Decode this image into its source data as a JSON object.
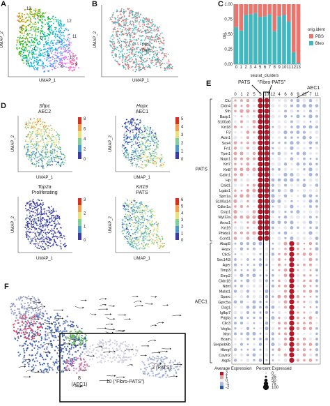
{
  "panel_labels": {
    "a": "A",
    "b": "B",
    "c": "C",
    "d": "D",
    "e": "E",
    "f": "F"
  },
  "umap_axes": {
    "x": "UMAP_1",
    "y": "UMAP_2"
  },
  "panel_a": {
    "cluster_labels": [
      "13",
      "12",
      "11",
      "0",
      "10",
      "1",
      "2",
      "3",
      "4",
      "5",
      "6",
      "7",
      "8",
      "9"
    ]
  },
  "panel_b": {
    "groups": [
      "PBS",
      "Bleo"
    ]
  },
  "panel_c": {
    "ylabel": "cnt",
    "xlabel": "seurat_clusters",
    "legend_title": "orig.ident",
    "colors": {
      "PBS": "#e8756e",
      "Bleo": "#3fb8c0"
    },
    "ticks_y": [
      "0.00",
      "0.25",
      "0.50",
      "0.75",
      "1.00"
    ]
  },
  "chart_data": {
    "type": "bar",
    "title": "",
    "xlabel": "seurat_clusters",
    "ylabel": "cnt",
    "ylim": [
      0,
      1
    ],
    "categories": [
      "0",
      "1",
      "2",
      "3",
      "4",
      "5",
      "6",
      "7",
      "8",
      "9",
      "10",
      "11",
      "12",
      "13"
    ],
    "series": [
      {
        "name": "Bleo",
        "values": [
          0.62,
          0.56,
          0.82,
          0.83,
          0.85,
          0.79,
          0.8,
          0.83,
          0.55,
          0.8,
          0.82,
          0.71,
          0.2,
          0.02
        ]
      },
      {
        "name": "PBS",
        "values": [
          0.38,
          0.44,
          0.18,
          0.17,
          0.15,
          0.21,
          0.2,
          0.17,
          0.45,
          0.2,
          0.18,
          0.29,
          0.8,
          0.98
        ]
      }
    ]
  },
  "panel_d": {
    "maps": [
      {
        "gene": "Sftpc",
        "label": "AEC2",
        "ticks": [
          "8",
          "6",
          "4",
          "2",
          "0"
        ]
      },
      {
        "gene": "Hopx",
        "label": "AEC1",
        "ticks": [
          "5",
          "4",
          "3",
          "2",
          "1",
          "0"
        ]
      },
      {
        "gene": "Top2a",
        "label": "Proliferating",
        "ticks": [
          "3",
          "2",
          "1",
          "0"
        ]
      },
      {
        "gene": "Krt19",
        "label": "PATS",
        "ticks": [
          "6",
          "5",
          "4",
          "3",
          "2",
          "1",
          "0"
        ]
      }
    ]
  },
  "panel_e": {
    "header_pats": "PATS",
    "header_fibro": "“Fibro-PATS”",
    "header_aec1": "AEC1",
    "clusters": [
      "0",
      "1",
      "2",
      "5",
      "3",
      "10",
      "12",
      "4",
      "6",
      "8",
      "9",
      "13",
      "7",
      "11"
    ],
    "group_pats": "PATS",
    "group_aec1": "AEC1",
    "pats_genes": [
      "Clu",
      "Cldn4",
      "Sfn",
      "Basp1",
      "S100a6",
      "Krt18",
      "F3",
      "Actn1",
      "Sox4",
      "Fn1",
      "Tpm1",
      "Nupr1",
      "Krt7",
      "Krt8",
      "Calm1",
      "Hp",
      "Cald1",
      "Lgals1",
      "Sprr1a",
      "S100a14",
      "Cdkn1a",
      "Csrp1",
      "Myl12a",
      "Anxa1",
      "Krt19",
      "Phlda1",
      "Ccnd1"
    ],
    "aec1_genes": [
      "Akap5",
      "Hopx",
      "Clic5",
      "Sec14l3",
      "Ager",
      "Timp3",
      "Emp2",
      "Cldn18",
      "Ndnf",
      "Malat1",
      "Sparc",
      "Gprc5a",
      "Dag1",
      "Igfbp7",
      "Pdgfa",
      "Clic3",
      "Vegfa",
      "Msn",
      "Bcam",
      "Serpinb6b",
      "Hbegf",
      "Cavin2",
      "Aqp5"
    ],
    "legend_avg_title": "Average Expression",
    "legend_avg_ticks": [
      "2",
      "1",
      "0",
      "-1",
      "-2"
    ],
    "legend_pct_title": "Percent Expressed",
    "legend_pct_values": [
      "0",
      "25",
      "50",
      "75",
      "100"
    ]
  },
  "panel_f": {
    "labels": {
      "pats": "3 (PATS)",
      "aec1_num": "8",
      "aec1": "(AEC1)",
      "fibro": "10 (“Fibro-PATS”)"
    }
  }
}
